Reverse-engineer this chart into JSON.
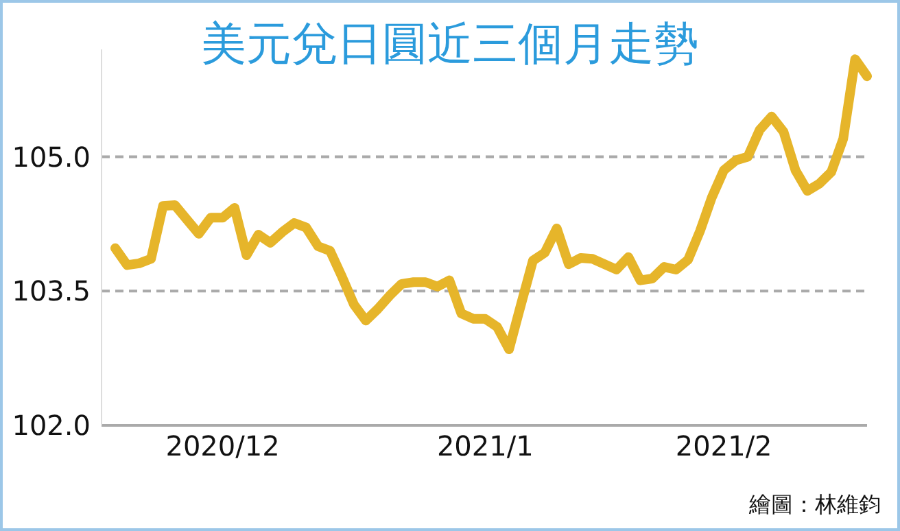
{
  "chart_data": {
    "type": "line",
    "title": "美元兌日圓近三個月走勢",
    "categories": [
      null,
      null,
      null,
      null,
      null,
      null,
      null,
      null,
      null,
      "2020/12",
      null,
      null,
      null,
      null,
      null,
      null,
      null,
      null,
      null,
      null,
      null,
      null,
      null,
      null,
      null,
      null,
      null,
      null,
      null,
      null,
      null,
      "2021/1",
      null,
      null,
      null,
      null,
      null,
      null,
      null,
      null,
      null,
      null,
      null,
      null,
      null,
      null,
      null,
      null,
      null,
      null,
      null,
      "2021/2",
      null,
      null,
      null,
      null,
      null,
      null,
      null,
      null,
      null,
      null,
      null,
      null
    ],
    "series": [
      {
        "color": "#e6b52a",
        "values": [
          103.98,
          103.79,
          103.81,
          103.86,
          104.45,
          104.46,
          104.3,
          104.14,
          104.32,
          104.32,
          104.43,
          103.9,
          104.13,
          104.04,
          104.16,
          104.26,
          104.21,
          104.0,
          103.95,
          103.66,
          103.35,
          103.17,
          103.3,
          103.45,
          103.58,
          103.6,
          103.6,
          103.55,
          103.62,
          103.25,
          103.19,
          103.19,
          103.1,
          102.85,
          103.35,
          103.84,
          103.93,
          104.2,
          103.8,
          103.87,
          103.86,
          103.8,
          103.74,
          103.88,
          103.62,
          103.64,
          103.77,
          103.74,
          103.85,
          104.17,
          104.55,
          104.85,
          104.96,
          105.0,
          105.3,
          105.45,
          105.28,
          104.85,
          104.62,
          104.7,
          104.83,
          105.2,
          106.09,
          105.9
        ]
      }
    ],
    "yticks": [
      {
        "value": 102.0,
        "label": "102.0"
      },
      {
        "value": 103.5,
        "label": "103.5"
      },
      {
        "value": 105.0,
        "label": "105.0"
      }
    ],
    "ylim": [
      102.0,
      106.2
    ],
    "grid": "y",
    "line_style": "solid",
    "marker": "none",
    "annotations": [
      "繪圖：林維鈞"
    ]
  }
}
